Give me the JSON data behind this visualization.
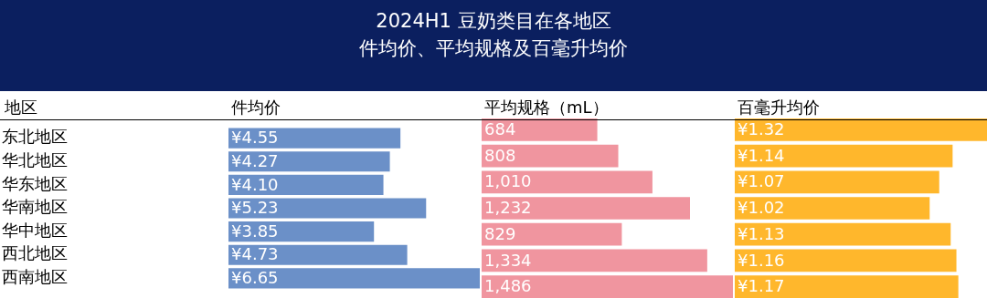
{
  "chart_data": [
    {
      "type": "other",
      "title": "2024H1 豆奶类目在各地区",
      "subtitle": "件均价、平均规格及百毫升均价"
    },
    {
      "type": "bar",
      "orientation": "horizontal",
      "title": "件均价",
      "ylabel": "地区",
      "categories": [
        "东北地区",
        "华北地区",
        "华东地区",
        "华南地区",
        "华中地区",
        "西北地区",
        "西南地区"
      ],
      "values": [
        4.55,
        4.27,
        4.1,
        5.23,
        3.85,
        4.73,
        6.65
      ],
      "value_labels": [
        "¥4.55",
        "¥4.27",
        "¥4.10",
        "¥5.23",
        "¥3.85",
        "¥4.73",
        "¥6.65"
      ],
      "color": "#6b90c8",
      "tick_labels": "y"
    },
    {
      "type": "bar",
      "orientation": "horizontal",
      "title": "平均规格（mL）",
      "values": [
        684,
        808,
        1010,
        1232,
        829,
        1334,
        1486
      ],
      "value_labels": [
        "684",
        "808",
        "1,010",
        "1,232",
        "829",
        "1,334",
        "1,486"
      ],
      "color": "#f0959f",
      "tick_labels": false
    },
    {
      "type": "bar",
      "orientation": "horizontal",
      "title": "百毫升均价",
      "values": [
        1.32,
        1.14,
        1.07,
        1.02,
        1.13,
        1.16,
        1.17
      ],
      "value_labels": [
        "¥1.32",
        "¥1.14",
        "¥1.07",
        "¥1.02",
        "¥1.13",
        "¥1.16",
        "¥1.17"
      ],
      "color": "#ffb72c",
      "tick_labels": false
    }
  ]
}
